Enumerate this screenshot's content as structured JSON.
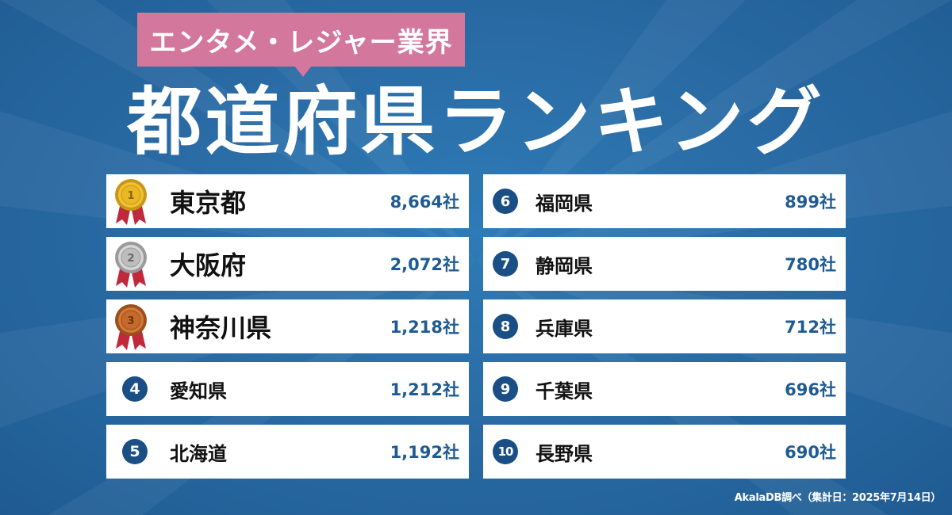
{
  "header": {
    "category_tag": "エンタメ・レジャー業界",
    "title": "都道府県ランキング"
  },
  "rankings": [
    {
      "rank": "1",
      "name": "東京都",
      "value": "8,664社",
      "medal": "gold"
    },
    {
      "rank": "2",
      "name": "大阪府",
      "value": "2,072社",
      "medal": "silver"
    },
    {
      "rank": "3",
      "name": "神奈川県",
      "value": "1,218社",
      "medal": "bronze"
    },
    {
      "rank": "4",
      "name": "愛知県",
      "value": "1,212社"
    },
    {
      "rank": "5",
      "name": "北海道",
      "value": "1,192社"
    },
    {
      "rank": "6",
      "name": "福岡県",
      "value": "899社"
    },
    {
      "rank": "7",
      "name": "静岡県",
      "value": "780社"
    },
    {
      "rank": "8",
      "name": "兵庫県",
      "value": "712社"
    },
    {
      "rank": "9",
      "name": "千葉県",
      "value": "696社"
    },
    {
      "rank": "10",
      "name": "長野県",
      "value": "690社"
    }
  ],
  "footer": {
    "source": "AkalaDB調べ（集計日：2025年7月14日）"
  },
  "colors": {
    "background": "#2a6ea6",
    "tag": "#d4779c",
    "number_badge": "#1a4f86",
    "value_text": "#1f5b92",
    "gold": "#e8b923",
    "silver": "#b7b7b7",
    "bronze": "#c46a2c",
    "ribbon": "#c0283b"
  }
}
